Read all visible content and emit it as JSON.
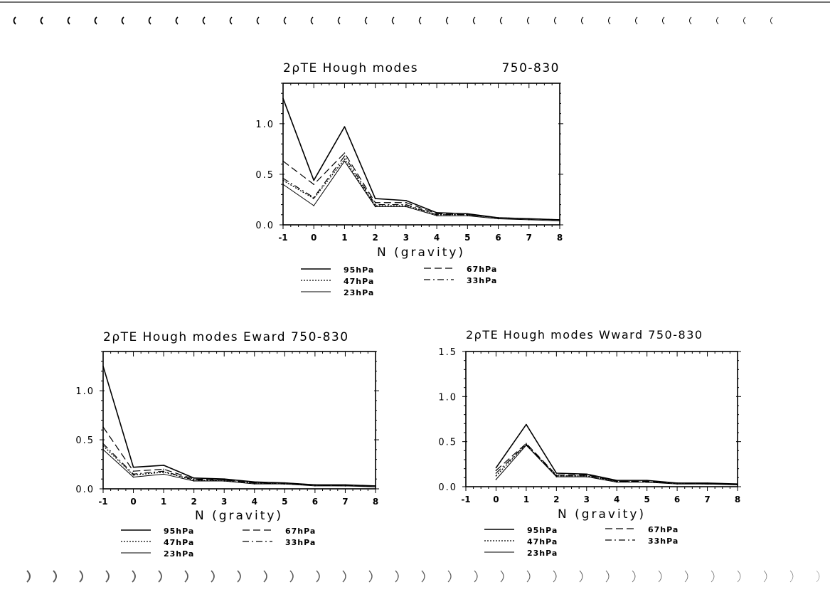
{
  "chart_data": [
    {
      "type": "line",
      "title": "2ρTE   Hough modes",
      "title_right": "750-830",
      "xlabel": "N (gravity)",
      "ylabel": "",
      "xlim": [
        -1,
        8
      ],
      "ylim": [
        0,
        1.4
      ],
      "x_ticks": [
        "-1",
        "0",
        "1",
        "2",
        "3",
        "4",
        "5",
        "6",
        "7",
        "8"
      ],
      "y_ticks": [
        "0.0",
        "0.5",
        "1.0"
      ],
      "y_tick_values": [
        0,
        0.5,
        1.0
      ],
      "grid": false,
      "legend_position": "bottom",
      "x": [
        -1,
        0,
        1,
        2,
        3,
        4,
        5,
        6,
        7,
        8
      ],
      "series": [
        {
          "name": "95hPa",
          "style": "solid-thick",
          "values": [
            1.25,
            0.44,
            0.97,
            0.26,
            0.24,
            0.12,
            0.11,
            0.07,
            0.06,
            0.05
          ]
        },
        {
          "name": "47hPa",
          "style": "dotted",
          "values": [
            0.44,
            0.26,
            0.65,
            0.19,
            0.19,
            0.1,
            0.1,
            0.07,
            0.06,
            0.05
          ]
        },
        {
          "name": "23hPa",
          "style": "solid",
          "values": [
            0.4,
            0.19,
            0.63,
            0.18,
            0.18,
            0.09,
            0.09,
            0.06,
            0.05,
            0.04
          ]
        },
        {
          "name": "67hPa",
          "style": "dashed",
          "values": [
            0.63,
            0.4,
            0.71,
            0.22,
            0.22,
            0.11,
            0.1,
            0.07,
            0.06,
            0.05
          ]
        },
        {
          "name": "33hPa",
          "style": "dashdot",
          "values": [
            0.46,
            0.27,
            0.68,
            0.2,
            0.2,
            0.1,
            0.1,
            0.07,
            0.06,
            0.05
          ]
        }
      ]
    },
    {
      "type": "line",
      "title": "2ρTE Hough modes Eward 750-830",
      "xlabel": "N (gravity)",
      "ylabel": "",
      "xlim": [
        -1,
        8
      ],
      "ylim": [
        0,
        1.4
      ],
      "x_ticks": [
        "-1",
        "0",
        "1",
        "2",
        "3",
        "4",
        "5",
        "6",
        "7",
        "8"
      ],
      "y_ticks": [
        "0.0",
        "0.5",
        "1.0"
      ],
      "y_tick_values": [
        0,
        0.5,
        1.0
      ],
      "grid": false,
      "legend_position": "bottom",
      "x": [
        -1,
        0,
        1,
        2,
        3,
        4,
        5,
        6,
        7,
        8
      ],
      "series": [
        {
          "name": "95hPa",
          "style": "solid-thick",
          "values": [
            1.25,
            0.22,
            0.24,
            0.11,
            0.1,
            0.07,
            0.06,
            0.04,
            0.04,
            0.03
          ]
        },
        {
          "name": "47hPa",
          "style": "dotted",
          "values": [
            0.44,
            0.14,
            0.17,
            0.09,
            0.08,
            0.06,
            0.05,
            0.04,
            0.03,
            0.03
          ]
        },
        {
          "name": "23hPa",
          "style": "solid",
          "values": [
            0.4,
            0.12,
            0.15,
            0.08,
            0.08,
            0.05,
            0.05,
            0.03,
            0.03,
            0.02
          ]
        },
        {
          "name": "67hPa",
          "style": "dashed",
          "values": [
            0.63,
            0.18,
            0.2,
            0.1,
            0.09,
            0.06,
            0.06,
            0.04,
            0.03,
            0.03
          ]
        },
        {
          "name": "33hPa",
          "style": "dashdot",
          "values": [
            0.46,
            0.15,
            0.18,
            0.09,
            0.09,
            0.06,
            0.05,
            0.04,
            0.03,
            0.03
          ]
        }
      ]
    },
    {
      "type": "line",
      "title": "2ρTE Hough modes Wward 750-830",
      "xlabel": "N (gravity)",
      "ylabel": "",
      "xlim": [
        -1,
        8
      ],
      "ylim": [
        0,
        1.5
      ],
      "x_ticks": [
        "-1",
        "0",
        "1",
        "2",
        "3",
        "4",
        "5",
        "6",
        "7",
        "8"
      ],
      "y_ticks": [
        "0.0",
        "0.5",
        "1.0",
        "1.5"
      ],
      "y_tick_values": [
        0,
        0.5,
        1.0,
        1.5
      ],
      "grid": false,
      "legend_position": "bottom",
      "x": [
        0,
        1,
        2,
        3,
        4,
        5,
        6,
        7,
        8
      ],
      "series": [
        {
          "name": "95hPa",
          "style": "solid-thick",
          "values": [
            0.21,
            0.69,
            0.15,
            0.14,
            0.07,
            0.07,
            0.04,
            0.04,
            0.03
          ]
        },
        {
          "name": "47hPa",
          "style": "dotted",
          "values": [
            0.12,
            0.47,
            0.12,
            0.12,
            0.06,
            0.05,
            0.04,
            0.03,
            0.03
          ]
        },
        {
          "name": "23hPa",
          "style": "solid",
          "values": [
            0.08,
            0.46,
            0.11,
            0.11,
            0.05,
            0.05,
            0.03,
            0.03,
            0.02
          ]
        },
        {
          "name": "67hPa",
          "style": "dashed",
          "values": [
            0.18,
            0.48,
            0.13,
            0.13,
            0.06,
            0.06,
            0.04,
            0.03,
            0.03
          ]
        },
        {
          "name": "33hPa",
          "style": "dashdot",
          "values": [
            0.15,
            0.47,
            0.12,
            0.12,
            0.06,
            0.05,
            0.04,
            0.03,
            0.03
          ]
        }
      ]
    }
  ]
}
